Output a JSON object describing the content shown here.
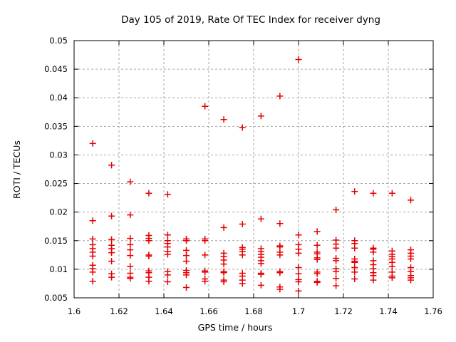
{
  "colors": {
    "marker": "#e60000",
    "grid": "#a6a6a6",
    "frame": "#000000",
    "background": "#ffffff",
    "text": "#000000"
  },
  "chart_data": {
    "type": "scatter",
    "title": "Day 105 of 2019, Rate Of TEC Index for receiver dyng",
    "xlabel": "GPS time / hours",
    "ylabel": "ROTI / TECUs",
    "xlim": [
      1.6,
      1.76
    ],
    "ylim": [
      0.005,
      0.05
    ],
    "grid": true,
    "legend": "none",
    "marker": "plus",
    "marker_size": 9,
    "xticks": [
      {
        "v": 1.6,
        "label": "1.6"
      },
      {
        "v": 1.62,
        "label": "1.62"
      },
      {
        "v": 1.64,
        "label": "1.64"
      },
      {
        "v": 1.66,
        "label": "1.66"
      },
      {
        "v": 1.68,
        "label": "1.68"
      },
      {
        "v": 1.7,
        "label": "1.7"
      },
      {
        "v": 1.72,
        "label": "1.72"
      },
      {
        "v": 1.74,
        "label": "1.74"
      },
      {
        "v": 1.76,
        "label": "1.76"
      }
    ],
    "yticks": [
      {
        "v": 0.005,
        "label": "0.005"
      },
      {
        "v": 0.01,
        "label": "0.01"
      },
      {
        "v": 0.015,
        "label": "0.015"
      },
      {
        "v": 0.02,
        "label": "0.02"
      },
      {
        "v": 0.025,
        "label": "0.025"
      },
      {
        "v": 0.03,
        "label": "0.03"
      },
      {
        "v": 0.035,
        "label": "0.035"
      },
      {
        "v": 0.04,
        "label": "0.04"
      },
      {
        "v": 0.045,
        "label": "0.045"
      },
      {
        "v": 0.05,
        "label": "0.05"
      }
    ],
    "series": [
      {
        "name": "ROTI",
        "columns": [
          {
            "t": 1.6083,
            "values": [
              0.032,
              0.0185,
              0.0153,
              0.0143,
              0.0136,
              0.013,
              0.0123,
              0.0107,
              0.0101,
              0.0095,
              0.0079
            ]
          },
          {
            "t": 1.6167,
            "values": [
              0.0282,
              0.0193,
              0.0152,
              0.0142,
              0.0136,
              0.0129,
              0.0114,
              0.0092,
              0.0086
            ]
          },
          {
            "t": 1.625,
            "values": [
              0.0253,
              0.0195,
              0.0154,
              0.0143,
              0.0134,
              0.0124,
              0.0105,
              0.0093,
              0.0086,
              0.0084
            ]
          },
          {
            "t": 1.6333,
            "values": [
              0.0233,
              0.0159,
              0.0154,
              0.015,
              0.0125,
              0.0123,
              0.0097,
              0.0094,
              0.0086,
              0.0079
            ]
          },
          {
            "t": 1.6417,
            "values": [
              0.0231,
              0.016,
              0.015,
              0.0145,
              0.0139,
              0.0131,
              0.0126,
              0.0096,
              0.009,
              0.0078
            ]
          },
          {
            "t": 1.65,
            "values": [
              0.0153,
              0.015,
              0.0133,
              0.0124,
              0.0114,
              0.0098,
              0.0094,
              0.009,
              0.0068
            ]
          },
          {
            "t": 1.6583,
            "values": [
              0.0385,
              0.0153,
              0.015,
              0.0125,
              0.0097,
              0.0095,
              0.0083,
              0.0079
            ]
          },
          {
            "t": 1.6667,
            "values": [
              0.0362,
              0.0173,
              0.0128,
              0.0122,
              0.0116,
              0.0109,
              0.0096,
              0.0094,
              0.0081,
              0.0078
            ]
          },
          {
            "t": 1.675,
            "values": [
              0.0348,
              0.0179,
              0.0138,
              0.0135,
              0.0131,
              0.0125,
              0.0093,
              0.0088,
              0.0081,
              0.0075
            ]
          },
          {
            "t": 1.6833,
            "values": [
              0.0368,
              0.0188,
              0.0136,
              0.0131,
              0.0126,
              0.0121,
              0.0115,
              0.011,
              0.0093,
              0.0091,
              0.0072
            ]
          },
          {
            "t": 1.6917,
            "values": [
              0.0403,
              0.018,
              0.0141,
              0.0139,
              0.013,
              0.0125,
              0.0096,
              0.0094,
              0.0069,
              0.0065
            ]
          },
          {
            "t": 1.7,
            "values": [
              0.0467,
              0.016,
              0.0143,
              0.0135,
              0.0128,
              0.0103,
              0.0092,
              0.0082,
              0.0078,
              0.0062
            ]
          },
          {
            "t": 1.7083,
            "values": [
              0.0166,
              0.0142,
              0.013,
              0.0127,
              0.012,
              0.0117,
              0.0095,
              0.0092,
              0.0079,
              0.0077
            ]
          },
          {
            "t": 1.7167,
            "values": [
              0.0204,
              0.0151,
              0.0144,
              0.0137,
              0.0119,
              0.0115,
              0.0101,
              0.0096,
              0.0084,
              0.0071
            ]
          },
          {
            "t": 1.725,
            "values": [
              0.0236,
              0.015,
              0.0145,
              0.0137,
              0.0118,
              0.0114,
              0.0112,
              0.0103,
              0.0095,
              0.0083
            ]
          },
          {
            "t": 1.7333,
            "values": [
              0.0233,
              0.0137,
              0.0135,
              0.013,
              0.0115,
              0.0108,
              0.0101,
              0.0094,
              0.0089,
              0.0081
            ]
          },
          {
            "t": 1.7417,
            "values": [
              0.0233,
              0.0132,
              0.0126,
              0.0122,
              0.0118,
              0.0112,
              0.0105,
              0.0095,
              0.0088,
              0.0085
            ]
          },
          {
            "t": 1.75,
            "values": [
              0.0221,
              0.0134,
              0.0128,
              0.0123,
              0.0118,
              0.0103,
              0.0096,
              0.0089,
              0.0085,
              0.0081
            ]
          }
        ]
      }
    ]
  }
}
